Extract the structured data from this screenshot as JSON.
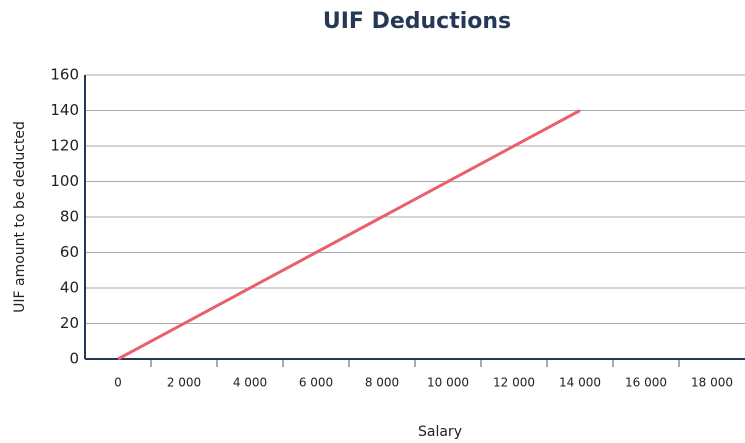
{
  "chart_data": {
    "type": "line",
    "title": "UIF Deductions",
    "x_label": "Salary",
    "y_label": "UIF amount to be deducted",
    "x": [
      0,
      14000
    ],
    "series": [
      {
        "name": "UIF",
        "color": "#e8606a",
        "values": [
          0,
          140
        ]
      }
    ],
    "xlim": [
      -1000,
      19000
    ],
    "xticks": [
      0,
      {
        "value": 2000,
        "label": "2 000"
      },
      {
        "value": 4000,
        "label": "4 000"
      },
      {
        "value": 6000,
        "label": "6 000"
      },
      {
        "value": 8000,
        "label": "8 000"
      },
      {
        "value": 10000,
        "label": "10 000"
      },
      {
        "value": 12000,
        "label": "12 000"
      },
      {
        "value": 14000,
        "label": "14 000"
      },
      {
        "value": 16000,
        "label": "16 000"
      },
      {
        "value": 18000,
        "label": "18 000"
      }
    ],
    "ylim": [
      0,
      160
    ],
    "yticks": [
      0,
      20,
      40,
      60,
      80,
      100,
      120,
      140,
      160
    ],
    "grid": true
  }
}
